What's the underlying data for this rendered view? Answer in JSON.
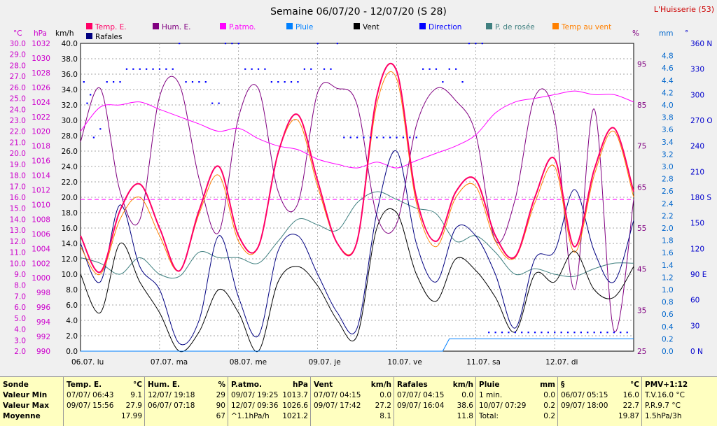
{
  "title": "Semaine 06/07/20 - 12/07/20 (S 28)",
  "station": "L'Huisserie (53)",
  "legend": [
    {
      "name": "Temp. E.",
      "color": "#ff0066"
    },
    {
      "name": "Hum. E.",
      "color": "#800080"
    },
    {
      "name": "P.atmo.",
      "color": "#ff00ff"
    },
    {
      "name": "Pluie",
      "color": "#0080ff"
    },
    {
      "name": "Vent",
      "color": "#000000"
    },
    {
      "name": "Direction",
      "color": "#0000ff"
    },
    {
      "name": "P. de rosée",
      "color": "#408080"
    },
    {
      "name": "Temp au vent",
      "color": "#ff8000"
    },
    {
      "name": "Rafales",
      "color": "#000080"
    }
  ],
  "axis_units": {
    "temp": "°C",
    "press": "hPa",
    "wind": "km/h",
    "hum": "%",
    "rain": "mm",
    "dir": "°"
  },
  "days": [
    "06.07. lu",
    "07.07. ma",
    "08.07. me",
    "09.07. je",
    "10.07. ve",
    "11.07. sa",
    "12.07. di"
  ],
  "chart_data": {
    "type": "line",
    "temp_axis": {
      "min": 2.0,
      "max": 30.0,
      "ticks": [
        "30.0",
        "29.0",
        "28.0",
        "27.0",
        "26.0",
        "25.0",
        "24.0",
        "23.0",
        "22.0",
        "21.0",
        "20.0",
        "19.0",
        "18.0",
        "17.0",
        "16.0",
        "15.0",
        "14.0",
        "13.0",
        "12.0",
        "11.0",
        "10.0",
        "9.0",
        "8.0",
        "7.0",
        "6.0",
        "5.0",
        "4.0",
        "3.0",
        "2.0"
      ]
    },
    "press_axis": {
      "min": 990,
      "max": 1032,
      "ticks": [
        "1032",
        "1030",
        "1028",
        "1026",
        "1024",
        "1022",
        "1020",
        "1018",
        "1016",
        "1014",
        "1012",
        "1010",
        "1008",
        "1006",
        "1004",
        "1002",
        "1000",
        "998",
        "996",
        "994",
        "992",
        "990"
      ]
    },
    "wind_axis": {
      "min": 0,
      "max": 40,
      "ticks": [
        "40.0",
        "38.0",
        "36.0",
        "34.0",
        "32.0",
        "30.0",
        "28.0",
        "26.0",
        "24.0",
        "22.0",
        "20.0",
        "18.0",
        "16.0",
        "14.0",
        "12.0",
        "10.0",
        "8.0",
        "6.0",
        "4.0",
        "2.0",
        "0.0"
      ]
    },
    "hum_axis": {
      "min": 25,
      "max": 100,
      "ticks": [
        "95",
        "85",
        "75",
        "65",
        "55",
        "45",
        "35",
        "25"
      ]
    },
    "rain_axis": {
      "min": 0,
      "max": 5.0,
      "ticks": [
        "4.8",
        "4.6",
        "4.4",
        "4.2",
        "4.0",
        "3.8",
        "3.6",
        "3.4",
        "3.2",
        "3.0",
        "2.8",
        "2.6",
        "2.4",
        "2.2",
        "2.0",
        "1.8",
        "1.6",
        "1.4",
        "1.2",
        "1.0",
        "0.8",
        "0.6",
        "0.4",
        "0.2",
        "0.0"
      ]
    },
    "dir_axis": {
      "min": 0,
      "max": 360,
      "ticks": [
        "360 N",
        "330",
        "300",
        "270 O",
        "240",
        "210",
        "180 S",
        "150",
        "120",
        "90 E",
        "60",
        "30",
        "0 N"
      ]
    },
    "hours": 168,
    "series": [
      {
        "name": "Temp. E.",
        "color": "#ff0066",
        "axis": "temp",
        "width": 2,
        "x": [
          0,
          6,
          12,
          18,
          24,
          30,
          36,
          42,
          48,
          54,
          60,
          66,
          72,
          78,
          84,
          90,
          96,
          102,
          108,
          114,
          120,
          126,
          132,
          138,
          144,
          150,
          156,
          162,
          168
        ],
        "y": [
          12.5,
          9.2,
          14.8,
          17.2,
          13.2,
          9.3,
          14.8,
          18.8,
          12.5,
          11.5,
          20.0,
          23.5,
          17.5,
          11.8,
          12.0,
          25.2,
          27.5,
          16.0,
          12.0,
          16.5,
          17.6,
          12.5,
          10.6,
          16.0,
          19.5,
          11.5,
          18.5,
          22.3,
          16.5
        ]
      },
      {
        "name": "Temp au vent",
        "color": "#ff8000",
        "axis": "temp",
        "width": 1,
        "x": [
          0,
          6,
          12,
          18,
          24,
          30,
          36,
          42,
          48,
          54,
          60,
          66,
          72,
          78,
          84,
          90,
          96,
          102,
          108,
          114,
          120,
          126,
          132,
          138,
          144,
          150,
          156,
          162,
          168
        ],
        "y": [
          11.5,
          9.0,
          14.0,
          16.0,
          12.5,
          9.3,
          14.5,
          18.0,
          12.0,
          11.5,
          20.0,
          23.0,
          17.0,
          11.8,
          12.0,
          24.5,
          26.8,
          15.5,
          11.5,
          16.0,
          17.0,
          12.0,
          10.5,
          15.5,
          18.8,
          11.0,
          18.0,
          22.0,
          16.0
        ]
      },
      {
        "name": "P. de rosée",
        "color": "#408080",
        "axis": "temp",
        "width": 1,
        "x": [
          0,
          6,
          12,
          18,
          24,
          30,
          36,
          42,
          48,
          54,
          60,
          66,
          72,
          78,
          84,
          90,
          96,
          102,
          108,
          114,
          120,
          126,
          132,
          138,
          144,
          150,
          156,
          162,
          168
        ],
        "y": [
          10.5,
          10.0,
          9.0,
          10.5,
          9.0,
          8.8,
          11.0,
          10.5,
          10.5,
          10.0,
          12.0,
          14.0,
          13.5,
          13.0,
          15.5,
          16.5,
          15.8,
          15.0,
          14.5,
          12.0,
          12.5,
          11.0,
          9.0,
          9.5,
          9.0,
          8.8,
          9.5,
          10.0,
          10.0
        ]
      },
      {
        "name": "Hum. E.",
        "color": "#800080",
        "axis": "hum",
        "width": 1,
        "x": [
          0,
          6,
          12,
          18,
          24,
          30,
          36,
          42,
          48,
          54,
          60,
          66,
          72,
          78,
          84,
          90,
          96,
          102,
          108,
          114,
          120,
          126,
          132,
          138,
          144,
          150,
          156,
          162,
          168
        ],
        "y": [
          76,
          89,
          64,
          57,
          87,
          90,
          67,
          54,
          82,
          89,
          64,
          61,
          88,
          89,
          85,
          58,
          56,
          80,
          89,
          86,
          78,
          52,
          62,
          87,
          82,
          40,
          84,
          30,
          62
        ]
      },
      {
        "name": "P.atmo.",
        "color": "#ff00ff",
        "axis": "press",
        "width": 1,
        "x": [
          0,
          6,
          12,
          18,
          24,
          30,
          36,
          42,
          48,
          54,
          60,
          66,
          72,
          78,
          84,
          90,
          96,
          102,
          108,
          114,
          120,
          126,
          132,
          138,
          144,
          150,
          156,
          162,
          168
        ],
        "y": [
          1020.0,
          1023.3,
          1023.6,
          1024.0,
          1023.0,
          1022.0,
          1021.0,
          1020.0,
          1020.4,
          1019.0,
          1018.0,
          1017.5,
          1016.2,
          1015.5,
          1015.0,
          1015.8,
          1015.0,
          1016.0,
          1017.0,
          1018.0,
          1019.5,
          1022.5,
          1024.0,
          1024.5,
          1025.0,
          1025.5,
          1025.0,
          1025.0,
          1024.0
        ]
      },
      {
        "name": "Rafales",
        "color": "#000080",
        "axis": "wind",
        "width": 1,
        "x": [
          0,
          6,
          12,
          18,
          24,
          30,
          36,
          42,
          48,
          54,
          60,
          66,
          72,
          78,
          84,
          90,
          96,
          102,
          108,
          114,
          120,
          126,
          132,
          138,
          144,
          150,
          156,
          162,
          168
        ],
        "y": [
          14.0,
          9.0,
          19.0,
          11.0,
          8.0,
          1.0,
          4.0,
          15.0,
          7.0,
          2.0,
          13.0,
          15.0,
          10.0,
          5.0,
          3.0,
          18.0,
          26.0,
          14.0,
          9.0,
          16.0,
          15.0,
          10.0,
          3.0,
          12.0,
          13.0,
          21.0,
          13.0,
          9.0,
          17.0
        ]
      },
      {
        "name": "Vent",
        "color": "#000000",
        "axis": "wind",
        "width": 1,
        "x": [
          0,
          6,
          12,
          18,
          24,
          30,
          36,
          42,
          48,
          54,
          60,
          66,
          72,
          78,
          84,
          90,
          96,
          102,
          108,
          114,
          120,
          126,
          132,
          138,
          144,
          150,
          156,
          162,
          168
        ],
        "y": [
          10.0,
          5.0,
          14.0,
          9.0,
          5.0,
          0.0,
          2.5,
          8.0,
          5.0,
          0.0,
          9.0,
          11.0,
          8.5,
          4.0,
          2.0,
          16.0,
          18.0,
          10.0,
          6.5,
          12.0,
          10.5,
          7.0,
          2.5,
          10.0,
          9.0,
          13.0,
          8.0,
          7.0,
          11.0
        ]
      },
      {
        "name": "Pluie",
        "color": "#0080ff",
        "axis": "rain",
        "width": 1,
        "x": [
          0,
          110,
          112,
          168
        ],
        "y": [
          0.0,
          0.0,
          0.2,
          0.2
        ]
      }
    ],
    "direction": {
      "color": "#0000ff",
      "axis": "dir",
      "x": [
        1,
        2,
        3,
        4,
        6,
        8,
        10,
        12,
        14,
        16,
        18,
        20,
        22,
        24,
        26,
        28,
        30,
        32,
        34,
        36,
        38,
        40,
        42,
        44,
        46,
        48,
        50,
        52,
        54,
        56,
        58,
        60,
        62,
        64,
        66,
        68,
        70,
        72,
        74,
        76,
        78,
        80,
        82,
        84,
        86,
        88,
        90,
        92,
        94,
        96,
        98,
        100,
        102,
        104,
        106,
        108,
        110,
        112,
        114,
        116,
        118,
        120,
        122,
        124,
        126,
        128,
        130,
        132,
        134,
        136,
        138,
        140,
        142,
        144,
        146,
        148,
        150,
        152,
        154,
        156,
        158,
        160,
        162,
        164,
        166
      ],
      "y": [
        315,
        290,
        300,
        250,
        260,
        315,
        315,
        315,
        330,
        330,
        330,
        330,
        330,
        330,
        330,
        330,
        360,
        315,
        315,
        315,
        315,
        290,
        290,
        360,
        360,
        360,
        330,
        330,
        330,
        330,
        315,
        315,
        315,
        315,
        315,
        330,
        330,
        360,
        330,
        330,
        360,
        250,
        250,
        250,
        250,
        250,
        250,
        250,
        250,
        250,
        250,
        250,
        250,
        330,
        330,
        330,
        315,
        330,
        330,
        315,
        360,
        360,
        360,
        22,
        22,
        22,
        22,
        22,
        22,
        22,
        22,
        22,
        22,
        22,
        22,
        22,
        22,
        22,
        22,
        22,
        22,
        22,
        22,
        22,
        22
      ]
    },
    "dashed_line": {
      "axis": "temp",
      "value": 15.8,
      "color": "#ff00ff"
    }
  },
  "table": {
    "row_labels": [
      "Sonde",
      "Valeur Min",
      "Valeur Max",
      "Moyenne"
    ],
    "columns": [
      {
        "h": "Temp. E.",
        "u": "°C",
        "rows": [
          [
            "07/07/ 06:43",
            "9.1"
          ],
          [
            "09/07/ 15:56",
            "27.9"
          ],
          [
            "",
            "17.99"
          ]
        ]
      },
      {
        "h": "Hum. E.",
        "u": "%",
        "rows": [
          [
            "12/07/ 19:18",
            "29"
          ],
          [
            "06/07/ 07:18",
            "90"
          ],
          [
            "",
            "67"
          ]
        ]
      },
      {
        "h": "P.atmo.",
        "u": "hPa",
        "rows": [
          [
            "09/07/ 19:25",
            "1013.7"
          ],
          [
            "12/07/ 09:36",
            "1026.6"
          ],
          [
            "^1.1hPa/h",
            "1021.2"
          ]
        ]
      },
      {
        "h": "Vent",
        "u": "km/h",
        "rows": [
          [
            "07/07/ 04:15",
            "0.0"
          ],
          [
            "09/07/ 17:42",
            "27.2"
          ],
          [
            "",
            "8.1"
          ]
        ]
      },
      {
        "h": "Rafales",
        "u": "km/h",
        "rows": [
          [
            "07/07/ 04:15",
            "0.0"
          ],
          [
            "09/07/ 16:04",
            "38.6"
          ],
          [
            "",
            "11.8"
          ]
        ]
      },
      {
        "h": "Pluie",
        "u": "mm",
        "rows": [
          [
            "1 min.",
            "0.0"
          ],
          [
            "10/07/ 07:29",
            "0.2"
          ],
          [
            "Total:",
            "0.2"
          ]
        ]
      },
      {
        "h": "§",
        "u": "°C",
        "rows": [
          [
            "06/07/ 05:15",
            "16.0"
          ],
          [
            "09/07/ 18:00",
            "22.7"
          ],
          [
            "",
            "19.87"
          ]
        ]
      },
      {
        "h": "PMV+1:12",
        "u": "",
        "rows": [
          [
            "T.V.16.0 °C",
            ""
          ],
          [
            "P.R.9.7 °C",
            ""
          ],
          [
            "1.5hPa/3h",
            ""
          ]
        ]
      }
    ]
  }
}
